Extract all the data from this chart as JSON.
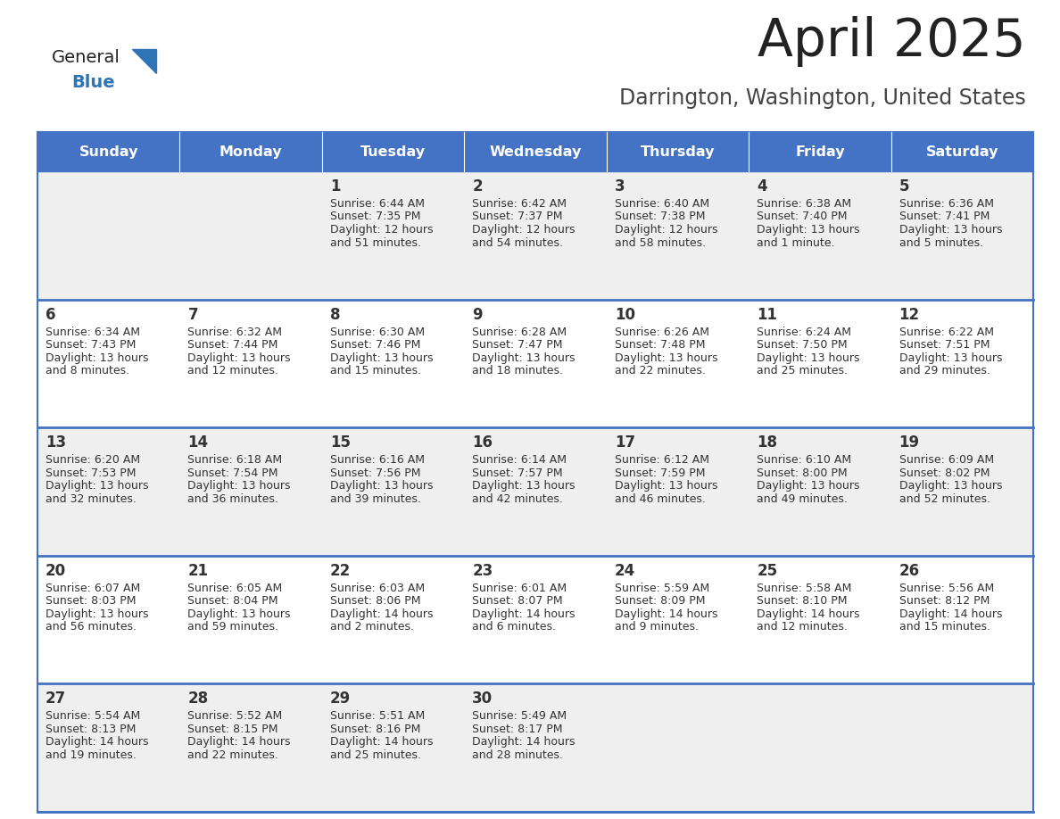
{
  "title": "April 2025",
  "subtitle": "Darrington, Washington, United States",
  "days_of_week": [
    "Sunday",
    "Monday",
    "Tuesday",
    "Wednesday",
    "Thursday",
    "Friday",
    "Saturday"
  ],
  "header_bg": "#4472C4",
  "header_text": "#FFFFFF",
  "row_bg_odd": "#EFEFEF",
  "row_bg_even": "#FFFFFF",
  "cell_border": "#4472C4",
  "day_num_color": "#333333",
  "text_color": "#333333",
  "title_color": "#222222",
  "subtitle_color": "#444444",
  "logo_general_color": "#222222",
  "logo_blue_color": "#2E75B6",
  "weeks": [
    [
      {
        "day": null,
        "sunrise": null,
        "sunset": null,
        "daylight": null
      },
      {
        "day": null,
        "sunrise": null,
        "sunset": null,
        "daylight": null
      },
      {
        "day": 1,
        "sunrise": "6:44 AM",
        "sunset": "7:35 PM",
        "daylight": "12 hours\nand 51 minutes."
      },
      {
        "day": 2,
        "sunrise": "6:42 AM",
        "sunset": "7:37 PM",
        "daylight": "12 hours\nand 54 minutes."
      },
      {
        "day": 3,
        "sunrise": "6:40 AM",
        "sunset": "7:38 PM",
        "daylight": "12 hours\nand 58 minutes."
      },
      {
        "day": 4,
        "sunrise": "6:38 AM",
        "sunset": "7:40 PM",
        "daylight": "13 hours\nand 1 minute."
      },
      {
        "day": 5,
        "sunrise": "6:36 AM",
        "sunset": "7:41 PM",
        "daylight": "13 hours\nand 5 minutes."
      }
    ],
    [
      {
        "day": 6,
        "sunrise": "6:34 AM",
        "sunset": "7:43 PM",
        "daylight": "13 hours\nand 8 minutes."
      },
      {
        "day": 7,
        "sunrise": "6:32 AM",
        "sunset": "7:44 PM",
        "daylight": "13 hours\nand 12 minutes."
      },
      {
        "day": 8,
        "sunrise": "6:30 AM",
        "sunset": "7:46 PM",
        "daylight": "13 hours\nand 15 minutes."
      },
      {
        "day": 9,
        "sunrise": "6:28 AM",
        "sunset": "7:47 PM",
        "daylight": "13 hours\nand 18 minutes."
      },
      {
        "day": 10,
        "sunrise": "6:26 AM",
        "sunset": "7:48 PM",
        "daylight": "13 hours\nand 22 minutes."
      },
      {
        "day": 11,
        "sunrise": "6:24 AM",
        "sunset": "7:50 PM",
        "daylight": "13 hours\nand 25 minutes."
      },
      {
        "day": 12,
        "sunrise": "6:22 AM",
        "sunset": "7:51 PM",
        "daylight": "13 hours\nand 29 minutes."
      }
    ],
    [
      {
        "day": 13,
        "sunrise": "6:20 AM",
        "sunset": "7:53 PM",
        "daylight": "13 hours\nand 32 minutes."
      },
      {
        "day": 14,
        "sunrise": "6:18 AM",
        "sunset": "7:54 PM",
        "daylight": "13 hours\nand 36 minutes."
      },
      {
        "day": 15,
        "sunrise": "6:16 AM",
        "sunset": "7:56 PM",
        "daylight": "13 hours\nand 39 minutes."
      },
      {
        "day": 16,
        "sunrise": "6:14 AM",
        "sunset": "7:57 PM",
        "daylight": "13 hours\nand 42 minutes."
      },
      {
        "day": 17,
        "sunrise": "6:12 AM",
        "sunset": "7:59 PM",
        "daylight": "13 hours\nand 46 minutes."
      },
      {
        "day": 18,
        "sunrise": "6:10 AM",
        "sunset": "8:00 PM",
        "daylight": "13 hours\nand 49 minutes."
      },
      {
        "day": 19,
        "sunrise": "6:09 AM",
        "sunset": "8:02 PM",
        "daylight": "13 hours\nand 52 minutes."
      }
    ],
    [
      {
        "day": 20,
        "sunrise": "6:07 AM",
        "sunset": "8:03 PM",
        "daylight": "13 hours\nand 56 minutes."
      },
      {
        "day": 21,
        "sunrise": "6:05 AM",
        "sunset": "8:04 PM",
        "daylight": "13 hours\nand 59 minutes."
      },
      {
        "day": 22,
        "sunrise": "6:03 AM",
        "sunset": "8:06 PM",
        "daylight": "14 hours\nand 2 minutes."
      },
      {
        "day": 23,
        "sunrise": "6:01 AM",
        "sunset": "8:07 PM",
        "daylight": "14 hours\nand 6 minutes."
      },
      {
        "day": 24,
        "sunrise": "5:59 AM",
        "sunset": "8:09 PM",
        "daylight": "14 hours\nand 9 minutes."
      },
      {
        "day": 25,
        "sunrise": "5:58 AM",
        "sunset": "8:10 PM",
        "daylight": "14 hours\nand 12 minutes."
      },
      {
        "day": 26,
        "sunrise": "5:56 AM",
        "sunset": "8:12 PM",
        "daylight": "14 hours\nand 15 minutes."
      }
    ],
    [
      {
        "day": 27,
        "sunrise": "5:54 AM",
        "sunset": "8:13 PM",
        "daylight": "14 hours\nand 19 minutes."
      },
      {
        "day": 28,
        "sunrise": "5:52 AM",
        "sunset": "8:15 PM",
        "daylight": "14 hours\nand 22 minutes."
      },
      {
        "day": 29,
        "sunrise": "5:51 AM",
        "sunset": "8:16 PM",
        "daylight": "14 hours\nand 25 minutes."
      },
      {
        "day": 30,
        "sunrise": "5:49 AM",
        "sunset": "8:17 PM",
        "daylight": "14 hours\nand 28 minutes."
      },
      {
        "day": null,
        "sunrise": null,
        "sunset": null,
        "daylight": null
      },
      {
        "day": null,
        "sunrise": null,
        "sunset": null,
        "daylight": null
      },
      {
        "day": null,
        "sunrise": null,
        "sunset": null,
        "daylight": null
      }
    ]
  ]
}
